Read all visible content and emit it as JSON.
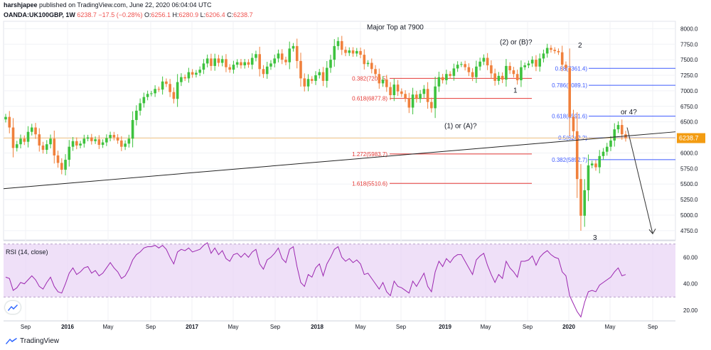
{
  "header": {
    "author": "harshjapee",
    "published": "published on TradingView.com, June 22, 2020 06:04:04 UTC",
    "symbol": "OANDA:UK100GBP, 1W",
    "last": "6238.7",
    "change": "−17.5 (−0.28%)",
    "o_label": "O:",
    "o": "6256.1",
    "h_label": "H:",
    "h": "6280.9",
    "l_label": "L:",
    "l": "6206.4",
    "c_label": "C:",
    "c": "6238.7"
  },
  "colors": {
    "up": "#3ec23e",
    "down": "#f0803c",
    "trendline": "#222222",
    "fib_red": "#e53935",
    "fib_blue": "#3d5afe",
    "rsi_line": "#9c27b0",
    "rsi_band": "#e9d6f5",
    "price_tag": "#f39c12"
  },
  "chart_data": [
    {
      "type": "candlestick",
      "title": "",
      "ylim": [
        4600,
        8050
      ],
      "y_ticks": [
        "8000.0",
        "7750.0",
        "7500.0",
        "7250.0",
        "7000.0",
        "6750.0",
        "6500.0",
        "6250.0",
        "6000.0",
        "5750.0",
        "5500.0",
        "5250.0",
        "5000.0",
        "4750.0"
      ],
      "x_ticks": [
        "Sep",
        "2016",
        "May",
        "Sep",
        "2017",
        "May",
        "Sep",
        "2018",
        "May",
        "Sep",
        "2019",
        "May",
        "Sep",
        "2020",
        "May",
        "Sep"
      ],
      "price_tag": "6238.7",
      "weekly_close": [
        6580,
        6410,
        6080,
        6140,
        6230,
        6180,
        6340,
        6410,
        6300,
        6120,
        6050,
        6140,
        6230,
        5960,
        5840,
        5730,
        5890,
        6100,
        6190,
        6120,
        6150,
        6230,
        6250,
        6190,
        6220,
        6130,
        6170,
        6240,
        6290,
        6250,
        6200,
        6100,
        6150,
        6230,
        6530,
        6680,
        6800,
        6900,
        6950,
        6960,
        7030,
        7020,
        7150,
        7110,
        6980,
        6870,
        7140,
        7220,
        7200,
        7300,
        7260,
        7290,
        7340,
        7440,
        7520,
        7400,
        7520,
        7450,
        7510,
        7380,
        7340,
        7420,
        7460,
        7410,
        7460,
        7420,
        7530,
        7590,
        7350,
        7270,
        7390,
        7440,
        7520,
        7600,
        7500,
        7460,
        7680,
        7720,
        7480,
        7200,
        7070,
        7190,
        7160,
        7250,
        7300,
        7160,
        7370,
        7500,
        7720,
        7800,
        7660,
        7610,
        7650,
        7600,
        7640,
        7580,
        7430,
        7450,
        7350,
        7270,
        7120,
        7180,
        7060,
        6930,
        7100,
        6990,
        6950,
        6880,
        6730,
        6940,
        6870,
        6950,
        7030,
        6820,
        6720,
        7070,
        7220,
        7170,
        7270,
        7240,
        7360,
        7420,
        7430,
        7380,
        7300,
        7220,
        7390,
        7470,
        7530,
        7410,
        7280,
        7160,
        7240,
        7180,
        7400,
        7330,
        7270,
        7170,
        7380,
        7410,
        7440,
        7500,
        7390,
        7520,
        7600,
        7690,
        7660,
        7640,
        7620,
        7420,
        7370,
        6580,
        6350,
        5580,
        4990,
        5400,
        5800,
        5830,
        5770,
        5950,
        6020,
        6100,
        6200,
        6380,
        6450,
        6300,
        6240
      ],
      "annotations": [
        "Major Top at 7900",
        "(2) or (B)?",
        "2",
        "1",
        "(1) or (A)?",
        "3",
        "or 4?"
      ],
      "fib_left": [
        {
          "label": "0.382(7200.5)",
          "value": 7200.5
        },
        {
          "label": "0.618(6877.8)",
          "value": 6877.8
        },
        {
          "label": "1.272(5983.7)",
          "value": 5983.7
        },
        {
          "label": "1.618(5510.6)",
          "value": 5510.6
        }
      ],
      "fib_right": [
        {
          "label": "0.786(7089.1)",
          "value": 7089.1
        },
        {
          "label": "0.618(6591.6)",
          "value": 6591.6
        },
        {
          "label": "0.5(6242.2)",
          "value": 6242.2
        },
        {
          "label": "0.382(5892.7)",
          "value": 5892.7
        }
      ],
      "fib_top_label": {
        "label": "0.88(7361.4)",
        "value": 7361.4
      }
    },
    {
      "type": "line",
      "title": "RSI (14, close)",
      "ylim": [
        12,
        72
      ],
      "y_ticks": [
        "60.00",
        "40.00",
        "20.00"
      ],
      "band": [
        30,
        70
      ],
      "values": [
        45,
        44,
        35,
        37,
        41,
        40,
        43,
        46,
        43,
        38,
        36,
        41,
        45,
        38,
        34,
        33,
        40,
        48,
        52,
        47,
        49,
        52,
        53,
        48,
        50,
        46,
        48,
        52,
        56,
        52,
        49,
        44,
        46,
        51,
        58,
        62,
        64,
        67,
        68,
        68,
        69,
        67,
        69,
        66,
        60,
        55,
        64,
        66,
        65,
        67,
        64,
        65,
        66,
        69,
        71,
        63,
        67,
        62,
        65,
        59,
        57,
        62,
        63,
        60,
        63,
        60,
        64,
        66,
        55,
        51,
        58,
        60,
        63,
        67,
        59,
        56,
        66,
        68,
        53,
        41,
        38,
        47,
        45,
        52,
        55,
        46,
        55,
        60,
        66,
        68,
        60,
        57,
        59,
        56,
        58,
        55,
        47,
        48,
        44,
        40,
        36,
        41,
        34,
        31,
        42,
        38,
        37,
        35,
        33,
        42,
        38,
        43,
        48,
        38,
        34,
        49,
        57,
        53,
        59,
        56,
        60,
        62,
        62,
        57,
        52,
        47,
        58,
        61,
        63,
        54,
        47,
        41,
        47,
        44,
        57,
        52,
        49,
        45,
        57,
        57,
        58,
        61,
        54,
        60,
        63,
        65,
        62,
        60,
        59,
        49,
        46,
        31,
        25,
        19,
        15,
        26,
        34,
        35,
        34,
        39,
        41,
        43,
        45,
        49,
        52,
        46,
        47
      ]
    }
  ],
  "footer": {
    "brand": "TradingView"
  }
}
